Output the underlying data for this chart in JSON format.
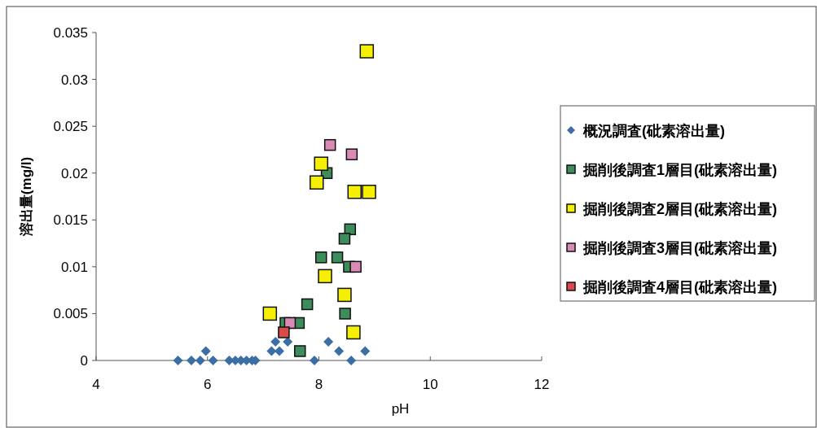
{
  "chart_data": {
    "type": "scatter",
    "xlabel": "pH",
    "ylabel": "溶出量(mg/l)",
    "xlim": [
      4,
      12
    ],
    "xticks": [
      4,
      6,
      8,
      10,
      12
    ],
    "ylim": [
      0,
      0.035
    ],
    "yticks": [
      0,
      0.005,
      0.01,
      0.015,
      0.02,
      0.025,
      0.03,
      0.035
    ],
    "grid": false,
    "legend": "right",
    "series": [
      {
        "name": "概況調査(砒素溶出量)",
        "color": "#3a6ea5",
        "marker": "diamond",
        "x": [
          5.47,
          5.71,
          5.87,
          6.1,
          6.39,
          6.5,
          6.6,
          6.7,
          6.8,
          6.86,
          7.92,
          8.58,
          5.97,
          7.15,
          7.29,
          8.36,
          8.83,
          7.22,
          7.44,
          8.17
        ],
        "values": [
          0,
          0,
          0,
          0,
          0,
          0,
          0,
          0,
          0,
          0,
          0,
          0,
          0.001,
          0.001,
          0.001,
          0.001,
          0.001,
          0.002,
          0.002,
          0.002
        ]
      },
      {
        "name": "掘削後調査1層目(砒素溶出量)",
        "color": "#3d8c5c",
        "marker": "square",
        "x": [
          8.04,
          8.33,
          8.14,
          8.56,
          8.46,
          8.54,
          7.79,
          8.47,
          7.4,
          7.64,
          7.66
        ],
        "values": [
          0.011,
          0.011,
          0.02,
          0.014,
          0.013,
          0.01,
          0.006,
          0.005,
          0.004,
          0.004,
          0.001
        ]
      },
      {
        "name": "掘削後調査2層目(砒素溶出量)",
        "color": "#f5f000",
        "marker": "square",
        "x": [
          8.86,
          8.04,
          7.96,
          8.64,
          8.9,
          8.11,
          8.46,
          7.12,
          8.62
        ],
        "values": [
          0.033,
          0.021,
          0.019,
          0.018,
          0.018,
          0.009,
          0.007,
          0.005,
          0.003
        ]
      },
      {
        "name": "掘削後調査3層目(砒素溶出量)",
        "color": "#d98bb5",
        "marker": "square",
        "x": [
          8.2,
          8.59,
          8.66,
          7.48
        ],
        "values": [
          0.023,
          0.022,
          0.01,
          0.004
        ]
      },
      {
        "name": "掘削後調査4層目(砒素溶出量)",
        "color": "#d94a4a",
        "marker": "square",
        "x": [
          7.37
        ],
        "values": [
          0.003
        ]
      }
    ]
  }
}
